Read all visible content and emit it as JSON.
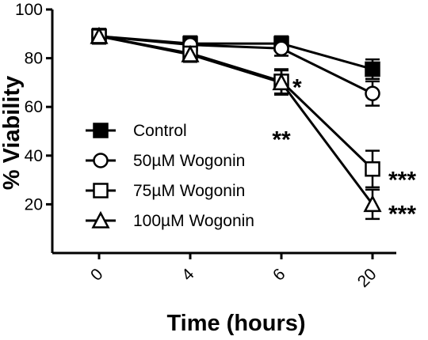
{
  "chart_data": {
    "type": "line",
    "xlabel": "Time (hours)",
    "ylabel": "% Viability",
    "categories": [
      "0",
      "4",
      "6",
      "20"
    ],
    "ylim": [
      0,
      100
    ],
    "yticks": [
      20,
      40,
      60,
      80,
      100
    ],
    "grid": false,
    "legend_position": "bottom-left",
    "series": [
      {
        "name": "Control",
        "marker": "filled-square",
        "values": [
          89,
          86,
          86,
          75.5
        ],
        "errors": [
          3,
          3,
          3,
          4
        ]
      },
      {
        "name": "50µM Wogonin",
        "marker": "open-circle",
        "values": [
          89,
          85.5,
          84,
          65.5
        ],
        "errors": [
          3,
          3,
          3,
          5
        ]
      },
      {
        "name": "75µM Wogonin",
        "marker": "open-square",
        "values": [
          89,
          82,
          70.5,
          34.5
        ],
        "errors": [
          3,
          3,
          5,
          7.5
        ]
      },
      {
        "name": "100µM Wogonin",
        "marker": "open-triangle",
        "values": [
          89,
          81.5,
          70,
          20
        ],
        "errors": [
          3,
          3,
          5,
          6
        ]
      }
    ],
    "annotations": [
      {
        "text": "*",
        "category": "6",
        "value": 70
      },
      {
        "text": "**",
        "category": "6",
        "value": 55
      },
      {
        "text": "***",
        "category": "20",
        "value": 34
      },
      {
        "text": "***",
        "category": "20",
        "value": 20
      }
    ]
  }
}
